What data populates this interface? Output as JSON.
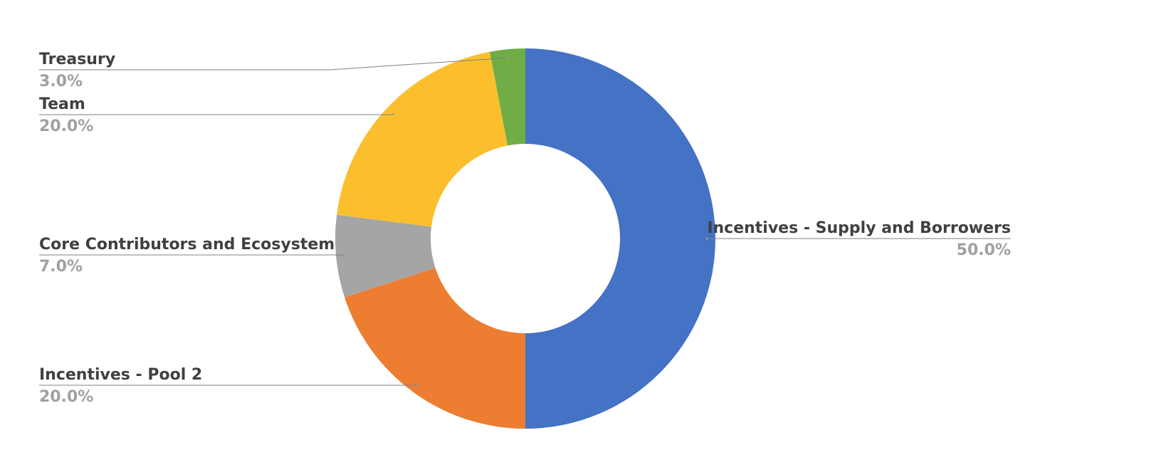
{
  "chart_data": {
    "type": "donut",
    "categories": [
      "Incentives - Supply and Borrowers",
      "Incentives - Pool 2",
      "Core Contributors and Ecosystem",
      "Team",
      "Treasury"
    ],
    "values": [
      50,
      20,
      7,
      20,
      3
    ],
    "value_labels": [
      "50.0%",
      "20.0%",
      "7.0%",
      "20.0%",
      "3.0%"
    ],
    "colors": [
      "#4472c4",
      "#ed7d31",
      "#a5a5a5",
      "#fbbf2d",
      "#70ad47"
    ]
  }
}
